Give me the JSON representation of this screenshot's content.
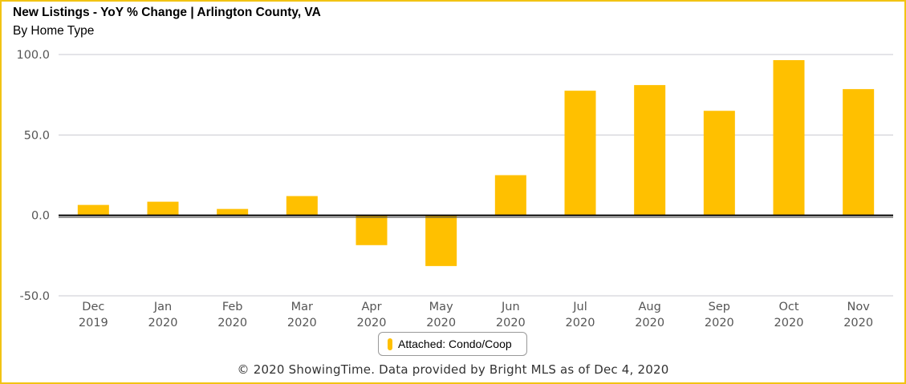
{
  "chart_data": {
    "type": "bar",
    "title": "New Listings - YoY % Change | Arlington County, VA",
    "subtitle": "By Home Type",
    "categories": [
      [
        "Dec",
        "2019"
      ],
      [
        "Jan",
        "2020"
      ],
      [
        "Feb",
        "2020"
      ],
      [
        "Mar",
        "2020"
      ],
      [
        "Apr",
        "2020"
      ],
      [
        "May",
        "2020"
      ],
      [
        "Jun",
        "2020"
      ],
      [
        "Jul",
        "2020"
      ],
      [
        "Aug",
        "2020"
      ],
      [
        "Sep",
        "2020"
      ],
      [
        "Oct",
        "2020"
      ],
      [
        "Nov",
        "2020"
      ]
    ],
    "series": [
      {
        "name": "Attached: Condo/Coop",
        "color": "#ffc000",
        "values": [
          6.5,
          8.5,
          4.0,
          12.0,
          -18.5,
          -31.5,
          25.0,
          77.5,
          81.0,
          65.0,
          96.5,
          78.5
        ]
      }
    ],
    "ylim": [
      -50,
      100
    ],
    "yticks": [
      "100.0",
      "50.0",
      "0.0",
      "-50.0"
    ],
    "ytick_values": [
      100,
      50,
      0,
      -50
    ],
    "grid": true,
    "legend": "bottom-center"
  },
  "footer": "© 2020 ShowingTime. Data provided by Bright MLS as of Dec 4, 2020"
}
